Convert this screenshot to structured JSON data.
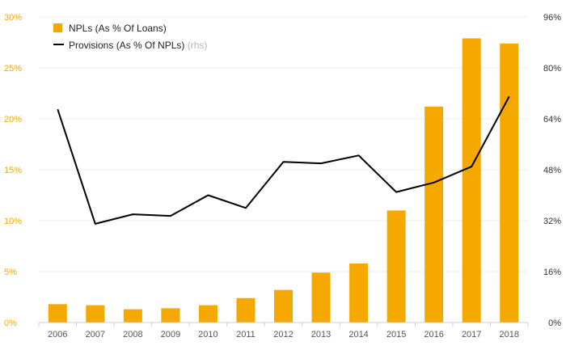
{
  "chart_data": {
    "type": "bar",
    "categories": [
      "2006",
      "2007",
      "2008",
      "2009",
      "2010",
      "2011",
      "2012",
      "2013",
      "2014",
      "2015",
      "2016",
      "2017",
      "2018"
    ],
    "series": [
      {
        "name": "NPLs (As % Of Loans)",
        "type": "bar",
        "axis": "left",
        "color": "#f5a800",
        "values": [
          1.8,
          1.7,
          1.3,
          1.4,
          1.7,
          2.4,
          3.2,
          4.9,
          5.8,
          11.0,
          21.2,
          27.9,
          27.4
        ]
      },
      {
        "name": "Provisions (As % Of NPLs)",
        "name_suffix": "(rhs)",
        "type": "line",
        "axis": "right",
        "color": "#000000",
        "values": [
          67,
          31,
          34,
          33.5,
          40,
          36,
          50.5,
          50,
          52.5,
          41,
          44,
          49,
          71
        ]
      }
    ],
    "y_left": {
      "ticks": [
        "0%",
        "5%",
        "10%",
        "15%",
        "20%",
        "25%",
        "30%"
      ],
      "tick_values": [
        0,
        5,
        10,
        15,
        20,
        25,
        30
      ],
      "ylim": [
        0,
        30
      ],
      "color": "#f5a800"
    },
    "y_right": {
      "ticks": [
        "0%",
        "16%",
        "32%",
        "48%",
        "64%",
        "80%",
        "96%"
      ],
      "tick_values": [
        0,
        16,
        32,
        48,
        64,
        80,
        96
      ],
      "ylim": [
        0,
        96
      ],
      "color": "#333333"
    },
    "grid": true,
    "legend_position": "top-left"
  }
}
